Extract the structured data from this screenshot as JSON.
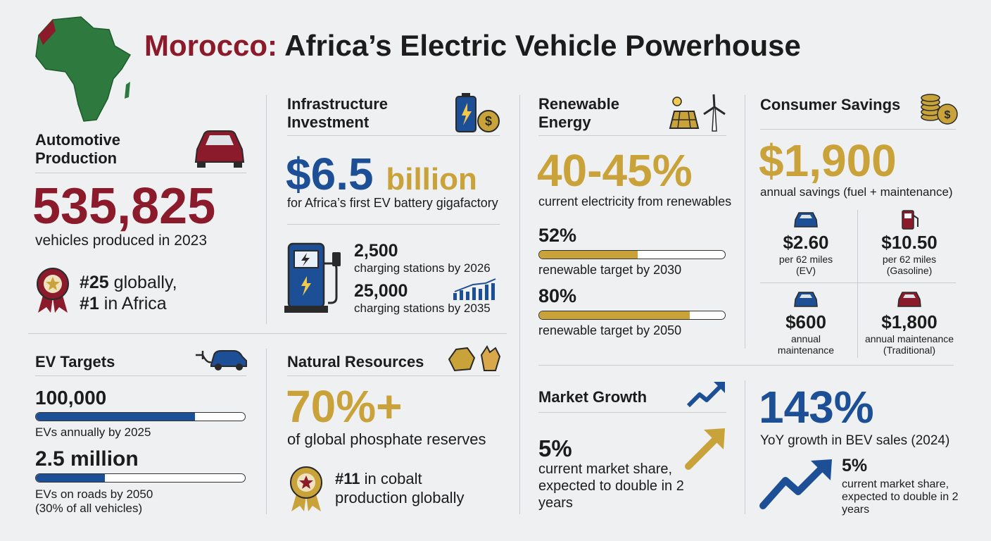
{
  "title": {
    "accent": "Morocco:",
    "main": "Africa’s Electric Vehicle Powerhouse"
  },
  "automotive": {
    "heading": "Automotive Production",
    "figure": "535,825",
    "caption": "vehicles produced in 2023",
    "ranks": [
      {
        "rank": "#25",
        "text": "globally,"
      },
      {
        "rank": "#1",
        "text": "in Africa"
      }
    ]
  },
  "ev_targets": {
    "heading": "EV Targets",
    "targets": [
      {
        "figure": "100,000",
        "caption": "EVs annually by 2025"
      },
      {
        "figure": "2.5 million",
        "caption": "EVs on roads by 2050",
        "note": "(30% of all vehicles)"
      }
    ]
  },
  "infrastructure": {
    "heading": "Infrastructure Investment",
    "amount": "$6.5",
    "unit": "billion",
    "caption": "for Africa’s first EV battery gigafactory",
    "stations": [
      {
        "figure": "2,500",
        "caption": "charging stations by 2026"
      },
      {
        "figure": "25,000",
        "caption": "charging stations by 2035"
      }
    ]
  },
  "natural_resources": {
    "heading": "Natural Resources",
    "figure": "70%+",
    "caption": "of global phosphate reserves",
    "rank": "#11",
    "rank_text": "in cobalt production globally"
  },
  "renewable": {
    "heading": "Renewable Energy",
    "figure": "40-45%",
    "caption": "current electricity from renewables",
    "targets": [
      {
        "figure": "52%",
        "caption": "renewable target by 2030"
      },
      {
        "figure": "80%",
        "caption": "renewable target by 2050"
      }
    ]
  },
  "market_growth": {
    "heading": "Market Growth",
    "figure": "5%",
    "caption": "current market share, expected to double in 2 years"
  },
  "consumer_savings": {
    "heading": "Consumer Savings",
    "figure": "$1,900",
    "caption": "annual savings (fuel + maintenance)",
    "costs": [
      {
        "figure": "$2.60",
        "line1": "per 62 miles",
        "line2": "(EV)"
      },
      {
        "figure": "$10.50",
        "line1": "per 62 miles",
        "line2": "(Gasoline)"
      },
      {
        "figure": "$600",
        "line1": "annual",
        "line2": "maintenance"
      },
      {
        "figure": "$1,800",
        "line1": "annual maintenance",
        "line2": "(Traditional)"
      }
    ]
  },
  "bev_growth": {
    "figure": "143%",
    "caption": "YoY growth in BEV sales (2024)",
    "share_figure": "5%",
    "share_caption": "current market share, expected to double in 2 years"
  }
}
